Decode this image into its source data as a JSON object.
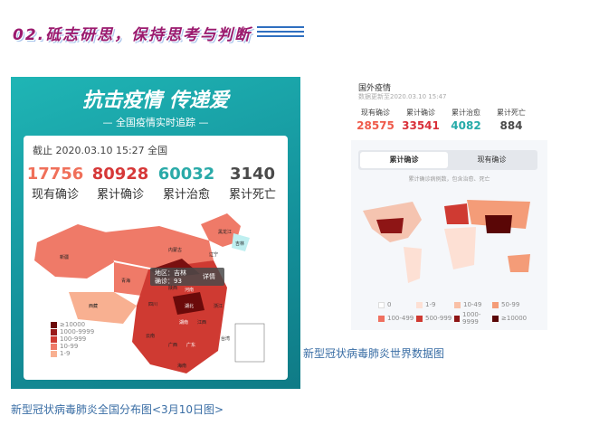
{
  "section": {
    "title": "02.砥志研思，保持思考与判断"
  },
  "china": {
    "slogan": "抗击疫情 传递爱",
    "subtitle": "— 全国疫情实时追踪 —",
    "date": "截止 2020.03.10 15:27 全国",
    "stats": [
      {
        "value": "17756",
        "label": "现有确诊",
        "color": "#f0705a"
      },
      {
        "value": "80928",
        "label": "累计确诊",
        "color": "#d63838"
      },
      {
        "value": "60032",
        "label": "累计治愈",
        "color": "#2aaaa8"
      },
      {
        "value": "3140",
        "label": "累计死亡",
        "color": "#4a4a4a"
      }
    ],
    "tooltip": {
      "region": "地区：吉林",
      "confirmed": "确诊：93",
      "detail": "详情"
    },
    "provinces": [
      "新疆",
      "西藏",
      "青海",
      "内蒙古",
      "黑龙江",
      "吉林",
      "辽宁",
      "四川",
      "陕西",
      "河南",
      "湖北",
      "湖南",
      "江西",
      "浙江",
      "云南",
      "广西",
      "广东",
      "台湾",
      "海南"
    ],
    "legend": [
      {
        "label": "≥10000",
        "color": "#6b0a0a"
      },
      {
        "label": "1000-9999",
        "color": "#9a1b1b"
      },
      {
        "label": "100-999",
        "color": "#cf3a32"
      },
      {
        "label": "10-99",
        "color": "#ef7a68"
      },
      {
        "label": "1-9",
        "color": "#f8b091"
      }
    ],
    "caption": "新型冠状病毒肺炎全国分布图<3月10日图>"
  },
  "world": {
    "title": "国外疫情",
    "updated": "数据更新至2020.03.10 15:47",
    "stats": [
      {
        "label": "现有确诊",
        "value": "28575",
        "color": "#ef5a4a"
      },
      {
        "label": "累计确诊",
        "value": "33541",
        "color": "#d9303a"
      },
      {
        "label": "累计治愈",
        "value": "4082",
        "color": "#25aaa8"
      },
      {
        "label": "累计死亡",
        "value": "884",
        "color": "#4a4a4a"
      }
    ],
    "tabs": [
      {
        "label": "累计确诊",
        "active": true
      },
      {
        "label": "现有确诊",
        "active": false
      }
    ],
    "note": "累计确诊病例数，包含治愈、死亡",
    "legend": [
      {
        "label": "0",
        "color": "#ffffff"
      },
      {
        "label": "1-9",
        "color": "#fde0d4"
      },
      {
        "label": "10-49",
        "color": "#f9c0a6"
      },
      {
        "label": "50-99",
        "color": "#f49c78"
      },
      {
        "label": "100-499",
        "color": "#ef7060"
      },
      {
        "label": "500-999",
        "color": "#cf3a32"
      },
      {
        "label": "1000-9999",
        "color": "#8e1515"
      },
      {
        "label": "≥10000",
        "color": "#5a0606"
      }
    ],
    "caption": "新型冠状病毒肺炎世界数据图"
  }
}
